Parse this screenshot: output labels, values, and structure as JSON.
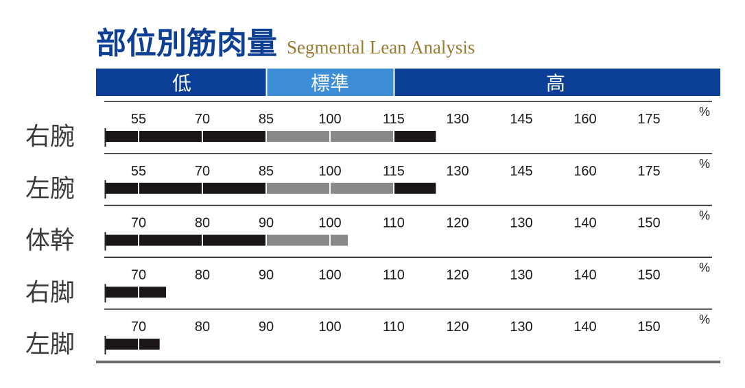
{
  "chart_data": {
    "type": "bar",
    "orientation": "horizontal",
    "title": "部位別筋肉量",
    "subtitle": "Segmental Lean Analysis",
    "bands": {
      "low": "低",
      "standard": "標準",
      "high": "高"
    },
    "unit": "%",
    "grid": false,
    "rows": [
      {
        "label": "右腕",
        "value": 124.9,
        "ticks": [
          55,
          70,
          85,
          100,
          115,
          130,
          145,
          160,
          175
        ],
        "standard_range": [
          85,
          115
        ]
      },
      {
        "label": "左腕",
        "value": 124.9,
        "ticks": [
          55,
          70,
          85,
          100,
          115,
          130,
          145,
          160,
          175
        ],
        "standard_range": [
          85,
          115
        ]
      },
      {
        "label": "体幹",
        "value": 102.8,
        "ticks": [
          70,
          80,
          90,
          100,
          110,
          120,
          130,
          140,
          150
        ],
        "standard_range": [
          90,
          110
        ]
      },
      {
        "label": "右脚",
        "value": 74.3,
        "ticks": [
          70,
          80,
          90,
          100,
          110,
          120,
          130,
          140,
          150
        ],
        "standard_range": [
          90,
          110
        ]
      },
      {
        "label": "左脚",
        "value": 73.3,
        "ticks": [
          70,
          80,
          90,
          100,
          110,
          120,
          130,
          140,
          150
        ],
        "standard_range": [
          90,
          110
        ]
      }
    ]
  },
  "colors": {
    "title": "#0d3f94",
    "subtitle": "#9a7b31",
    "header_dark": "#0a3f95",
    "header_standard": "#3d8ed6",
    "bar_dark": "#1c1616",
    "bar_standard": "#898989",
    "row_rule": "#222222",
    "bottom_rule": "#6b6b6b"
  }
}
